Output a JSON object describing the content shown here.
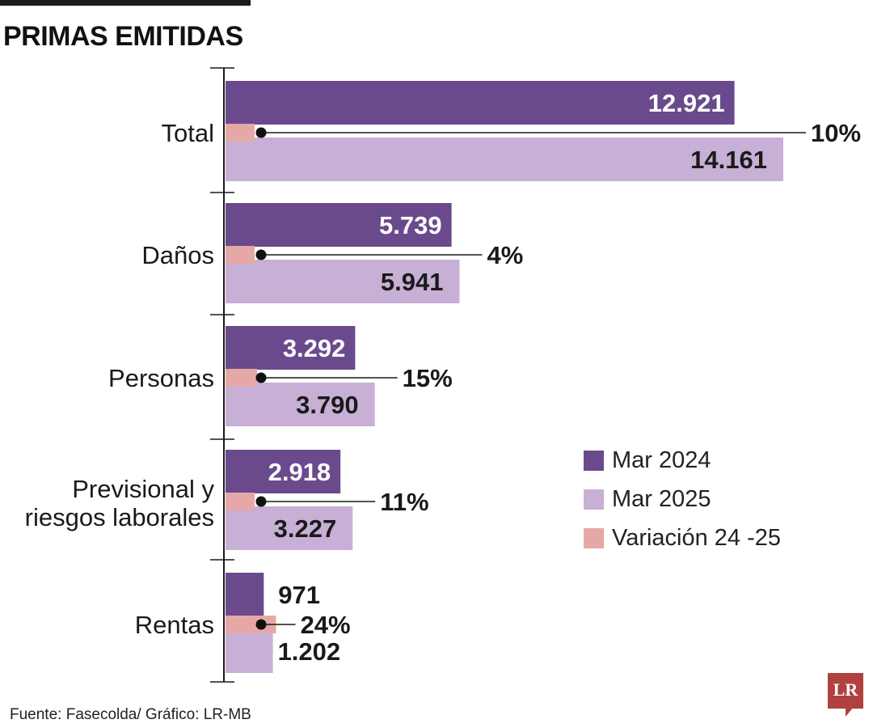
{
  "title": "PRIMAS EMITIDAS",
  "source": "Fuente: Fasecolda/ Gráfico: LR-MB",
  "logo": "LR",
  "colors": {
    "mar2024": "#6a4a8c",
    "mar2025": "#c8afd5",
    "variation": "#e6a8a6",
    "text": "#1a1a1a"
  },
  "legend": [
    {
      "label": "Mar 2024",
      "color": "#6a4a8c"
    },
    {
      "label": "Mar 2025",
      "color": "#c8afd5"
    },
    {
      "label": "Variación 24 -25",
      "color": "#e6a8a6"
    }
  ],
  "chart_data": {
    "type": "bar",
    "orientation": "horizontal",
    "title": "PRIMAS EMITIDAS",
    "categories": [
      "Total",
      "Daños",
      "Personas",
      "Previsional y riesgos laborales",
      "Rentas"
    ],
    "category_lines": [
      [
        "Total"
      ],
      [
        "Daños"
      ],
      [
        "Personas"
      ],
      [
        "Previsional y",
        "riesgos laborales"
      ],
      [
        "Rentas"
      ]
    ],
    "series": [
      {
        "name": "Mar 2024",
        "values": [
          12921,
          5739,
          3292,
          2918,
          971
        ],
        "labels": [
          "12.921",
          "5.739",
          "3.292",
          "2.918",
          "971"
        ]
      },
      {
        "name": "Mar 2025",
        "values": [
          14161,
          5941,
          3790,
          3227,
          1202
        ],
        "labels": [
          "14.161",
          "5.941",
          "3.790",
          "3.227",
          "1.202"
        ]
      }
    ],
    "variation": {
      "name": "Variación 24 -25",
      "values": [
        10,
        4,
        15,
        11,
        24
      ],
      "labels": [
        "10%",
        "4%",
        "15%",
        "11%",
        "24%"
      ]
    },
    "xlim": [
      0,
      14161
    ],
    "grid": false,
    "legend_position": "right"
  }
}
